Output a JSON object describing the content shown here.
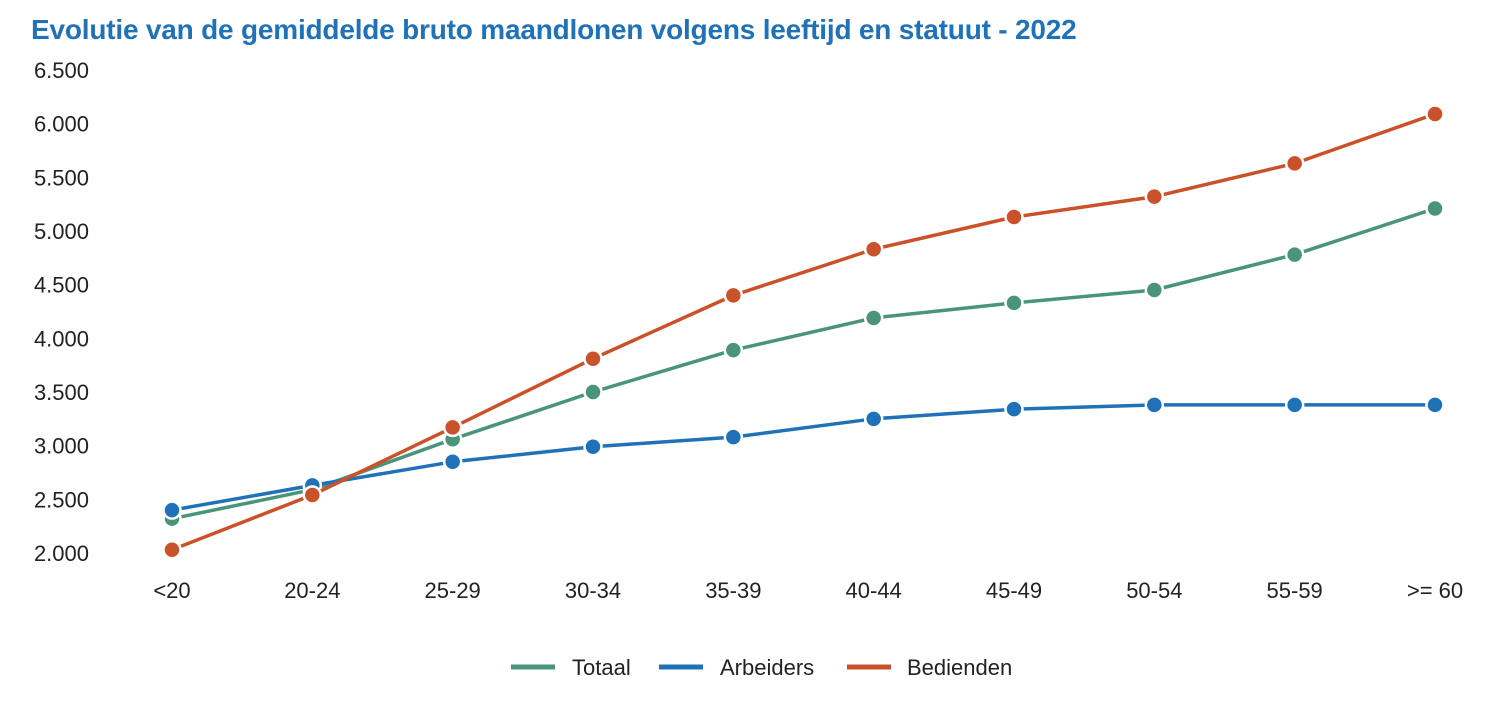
{
  "chart_data": {
    "type": "line",
    "title": "Evolutie van de gemiddelde bruto maandlonen volgens leeftijd en statuut - 2022",
    "xlabel": "",
    "ylabel": "",
    "categories": [
      "<20",
      "20-24",
      "25-29",
      "30-34",
      "35-39",
      "40-44",
      "45-49",
      "50-54",
      "55-59",
      ">= 60"
    ],
    "ylim": [
      2000,
      6500
    ],
    "yticks": [
      2000,
      2500,
      3000,
      3500,
      4000,
      4500,
      5000,
      5500,
      6000,
      6500
    ],
    "ytick_labels": [
      "2.000",
      "2.500",
      "3.000",
      "3.500",
      "4.000",
      "4.500",
      "5.000",
      "5.500",
      "6.000",
      "6.500"
    ],
    "grid": false,
    "legend_position": "bottom",
    "series": [
      {
        "name": "Totaal",
        "color": "#4a9479",
        "values": [
          2320,
          2590,
          3060,
          3500,
          3890,
          4190,
          4330,
          4450,
          4780,
          5210
        ]
      },
      {
        "name": "Arbeiders",
        "color": "#1f72b8",
        "values": [
          2400,
          2630,
          2850,
          2990,
          3080,
          3250,
          3340,
          3380,
          3380,
          3380
        ]
      },
      {
        "name": "Bedienden",
        "color": "#c9522a",
        "values": [
          2030,
          2540,
          3170,
          3810,
          4400,
          4830,
          5130,
          5320,
          5630,
          6090
        ]
      }
    ]
  }
}
